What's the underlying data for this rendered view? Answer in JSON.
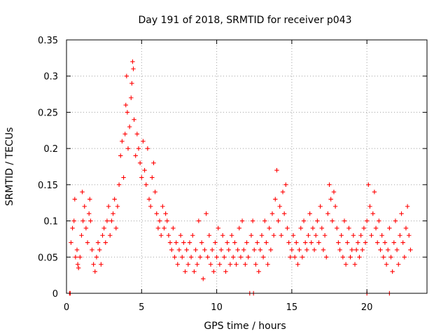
{
  "chart_data": {
    "type": "scatter",
    "title": "Day 191 of 2018, SRMTID for receiver p043",
    "xlabel": "GPS time / hours",
    "ylabel": "SRMTID / TECUs",
    "xlim": [
      0,
      24
    ],
    "ylim": [
      0,
      0.35
    ],
    "xticks": [
      0,
      5,
      10,
      15,
      20
    ],
    "xtick_labels": [
      "0",
      "5",
      "10",
      "15",
      "20"
    ],
    "yticks": [
      0,
      0.05,
      0.1,
      0.15,
      0.2,
      0.25,
      0.3,
      0.35
    ],
    "ytick_labels": [
      "0",
      "0.05",
      "0.1",
      "0.15",
      "0.2",
      "0.25",
      "0.3",
      "0.35"
    ],
    "grid": true,
    "marker": "plus",
    "color": "#ff0000",
    "series": [
      {
        "name": "SRMTID",
        "points": [
          [
            0.2,
            0.0
          ],
          [
            0.25,
            0.0
          ],
          [
            12.2,
            0.0
          ],
          [
            12.45,
            0.0
          ],
          [
            20.0,
            0.0
          ],
          [
            21.5,
            0.0
          ],
          [
            0.3,
            0.07
          ],
          [
            0.4,
            0.09
          ],
          [
            0.5,
            0.1
          ],
          [
            0.55,
            0.13
          ],
          [
            0.6,
            0.05
          ],
          [
            0.7,
            0.06
          ],
          [
            0.75,
            0.04
          ],
          [
            0.8,
            0.035
          ],
          [
            0.9,
            0.05
          ],
          [
            1.0,
            0.08
          ],
          [
            1.05,
            0.14
          ],
          [
            1.1,
            0.1
          ],
          [
            1.2,
            0.12
          ],
          [
            1.3,
            0.09
          ],
          [
            1.4,
            0.07
          ],
          [
            1.5,
            0.11
          ],
          [
            1.55,
            0.13
          ],
          [
            1.6,
            0.1
          ],
          [
            1.7,
            0.06
          ],
          [
            1.8,
            0.04
          ],
          [
            1.9,
            0.03
          ],
          [
            2.0,
            0.05
          ],
          [
            2.1,
            0.07
          ],
          [
            2.2,
            0.06
          ],
          [
            2.3,
            0.04
          ],
          [
            2.4,
            0.08
          ],
          [
            2.5,
            0.09
          ],
          [
            2.6,
            0.07
          ],
          [
            2.7,
            0.1
          ],
          [
            2.8,
            0.12
          ],
          [
            2.9,
            0.08
          ],
          [
            3.0,
            0.1
          ],
          [
            3.1,
            0.11
          ],
          [
            3.2,
            0.13
          ],
          [
            3.3,
            0.09
          ],
          [
            3.4,
            0.12
          ],
          [
            3.5,
            0.15
          ],
          [
            3.6,
            0.19
          ],
          [
            3.7,
            0.21
          ],
          [
            3.8,
            0.16
          ],
          [
            3.9,
            0.22
          ],
          [
            3.95,
            0.26
          ],
          [
            4.0,
            0.3
          ],
          [
            4.05,
            0.25
          ],
          [
            4.1,
            0.2
          ],
          [
            4.2,
            0.23
          ],
          [
            4.3,
            0.27
          ],
          [
            4.35,
            0.29
          ],
          [
            4.4,
            0.32
          ],
          [
            4.45,
            0.31
          ],
          [
            4.5,
            0.24
          ],
          [
            4.6,
            0.19
          ],
          [
            4.7,
            0.22
          ],
          [
            4.8,
            0.2
          ],
          [
            4.9,
            0.18
          ],
          [
            5.0,
            0.16
          ],
          [
            5.1,
            0.21
          ],
          [
            5.2,
            0.17
          ],
          [
            5.3,
            0.15
          ],
          [
            5.4,
            0.2
          ],
          [
            5.5,
            0.13
          ],
          [
            5.6,
            0.12
          ],
          [
            5.7,
            0.16
          ],
          [
            5.8,
            0.18
          ],
          [
            5.9,
            0.14
          ],
          [
            6.0,
            0.11
          ],
          [
            6.1,
            0.09
          ],
          [
            6.2,
            0.1
          ],
          [
            6.3,
            0.08
          ],
          [
            6.4,
            0.12
          ],
          [
            6.5,
            0.09
          ],
          [
            6.6,
            0.11
          ],
          [
            6.7,
            0.1
          ],
          [
            6.8,
            0.08
          ],
          [
            6.9,
            0.07
          ],
          [
            7.0,
            0.06
          ],
          [
            7.1,
            0.09
          ],
          [
            7.2,
            0.05
          ],
          [
            7.3,
            0.07
          ],
          [
            7.4,
            0.04
          ],
          [
            7.5,
            0.06
          ],
          [
            7.6,
            0.08
          ],
          [
            7.7,
            0.05
          ],
          [
            7.8,
            0.07
          ],
          [
            7.9,
            0.03
          ],
          [
            8.0,
            0.06
          ],
          [
            8.1,
            0.04
          ],
          [
            8.2,
            0.07
          ],
          [
            8.3,
            0.05
          ],
          [
            8.4,
            0.08
          ],
          [
            8.5,
            0.03
          ],
          [
            8.6,
            0.06
          ],
          [
            8.7,
            0.04
          ],
          [
            8.8,
            0.1
          ],
          [
            8.9,
            0.05
          ],
          [
            9.0,
            0.07
          ],
          [
            9.1,
            0.02
          ],
          [
            9.2,
            0.06
          ],
          [
            9.3,
            0.11
          ],
          [
            9.4,
            0.05
          ],
          [
            9.5,
            0.08
          ],
          [
            9.6,
            0.04
          ],
          [
            9.7,
            0.06
          ],
          [
            9.8,
            0.03
          ],
          [
            9.9,
            0.07
          ],
          [
            10.0,
            0.05
          ],
          [
            10.1,
            0.09
          ],
          [
            10.2,
            0.04
          ],
          [
            10.3,
            0.06
          ],
          [
            10.4,
            0.08
          ],
          [
            10.5,
            0.05
          ],
          [
            10.6,
            0.03
          ],
          [
            10.7,
            0.07
          ],
          [
            10.8,
            0.06
          ],
          [
            10.9,
            0.04
          ],
          [
            11.0,
            0.08
          ],
          [
            11.1,
            0.05
          ],
          [
            11.2,
            0.07
          ],
          [
            11.3,
            0.04
          ],
          [
            11.4,
            0.06
          ],
          [
            11.5,
            0.09
          ],
          [
            11.6,
            0.05
          ],
          [
            11.7,
            0.1
          ],
          [
            11.8,
            0.06
          ],
          [
            11.9,
            0.04
          ],
          [
            12.0,
            0.07
          ],
          [
            12.1,
            0.05
          ],
          [
            12.3,
            0.08
          ],
          [
            12.4,
            0.1
          ],
          [
            12.5,
            0.06
          ],
          [
            12.6,
            0.04
          ],
          [
            12.7,
            0.07
          ],
          [
            12.8,
            0.03
          ],
          [
            12.9,
            0.06
          ],
          [
            13.0,
            0.08
          ],
          [
            13.1,
            0.05
          ],
          [
            13.2,
            0.1
          ],
          [
            13.3,
            0.07
          ],
          [
            13.4,
            0.04
          ],
          [
            13.5,
            0.09
          ],
          [
            13.6,
            0.06
          ],
          [
            13.7,
            0.11
          ],
          [
            13.8,
            0.08
          ],
          [
            13.9,
            0.13
          ],
          [
            14.0,
            0.17
          ],
          [
            14.1,
            0.1
          ],
          [
            14.2,
            0.12
          ],
          [
            14.3,
            0.08
          ],
          [
            14.4,
            0.14
          ],
          [
            14.5,
            0.11
          ],
          [
            14.6,
            0.15
          ],
          [
            14.7,
            0.09
          ],
          [
            14.8,
            0.07
          ],
          [
            14.9,
            0.05
          ],
          [
            15.0,
            0.06
          ],
          [
            15.1,
            0.08
          ],
          [
            15.2,
            0.05
          ],
          [
            15.3,
            0.07
          ],
          [
            15.4,
            0.04
          ],
          [
            15.5,
            0.06
          ],
          [
            15.6,
            0.09
          ],
          [
            15.7,
            0.05
          ],
          [
            15.8,
            0.1
          ],
          [
            15.9,
            0.07
          ],
          [
            16.0,
            0.06
          ],
          [
            16.1,
            0.08
          ],
          [
            16.2,
            0.11
          ],
          [
            16.3,
            0.07
          ],
          [
            16.4,
            0.09
          ],
          [
            16.5,
            0.06
          ],
          [
            16.6,
            0.08
          ],
          [
            16.7,
            0.1
          ],
          [
            16.8,
            0.07
          ],
          [
            16.9,
            0.12
          ],
          [
            17.0,
            0.09
          ],
          [
            17.1,
            0.06
          ],
          [
            17.2,
            0.08
          ],
          [
            17.3,
            0.05
          ],
          [
            17.4,
            0.11
          ],
          [
            17.5,
            0.15
          ],
          [
            17.6,
            0.13
          ],
          [
            17.7,
            0.1
          ],
          [
            17.8,
            0.14
          ],
          [
            17.9,
            0.12
          ],
          [
            18.0,
            0.09
          ],
          [
            18.1,
            0.07
          ],
          [
            18.2,
            0.06
          ],
          [
            18.3,
            0.08
          ],
          [
            18.4,
            0.05
          ],
          [
            18.5,
            0.1
          ],
          [
            18.6,
            0.04
          ],
          [
            18.7,
            0.07
          ],
          [
            18.8,
            0.09
          ],
          [
            18.9,
            0.05
          ],
          [
            19.0,
            0.06
          ],
          [
            19.1,
            0.08
          ],
          [
            19.2,
            0.04
          ],
          [
            19.3,
            0.06
          ],
          [
            19.4,
            0.07
          ],
          [
            19.5,
            0.05
          ],
          [
            19.6,
            0.08
          ],
          [
            19.7,
            0.06
          ],
          [
            19.8,
            0.09
          ],
          [
            19.9,
            0.07
          ],
          [
            20.0,
            0.1
          ],
          [
            20.1,
            0.15
          ],
          [
            20.2,
            0.12
          ],
          [
            20.3,
            0.08
          ],
          [
            20.4,
            0.11
          ],
          [
            20.5,
            0.14
          ],
          [
            20.6,
            0.09
          ],
          [
            20.7,
            0.07
          ],
          [
            20.8,
            0.1
          ],
          [
            20.9,
            0.06
          ],
          [
            21.0,
            0.08
          ],
          [
            21.1,
            0.05
          ],
          [
            21.2,
            0.07
          ],
          [
            21.3,
            0.04
          ],
          [
            21.4,
            0.06
          ],
          [
            21.5,
            0.09
          ],
          [
            21.6,
            0.05
          ],
          [
            21.7,
            0.03
          ],
          [
            21.8,
            0.07
          ],
          [
            21.9,
            0.1
          ],
          [
            22.0,
            0.06
          ],
          [
            22.1,
            0.04
          ],
          [
            22.2,
            0.08
          ],
          [
            22.3,
            0.11
          ],
          [
            22.4,
            0.07
          ],
          [
            22.5,
            0.05
          ],
          [
            22.6,
            0.09
          ],
          [
            22.7,
            0.12
          ],
          [
            22.8,
            0.08
          ],
          [
            22.9,
            0.06
          ]
        ]
      }
    ]
  }
}
